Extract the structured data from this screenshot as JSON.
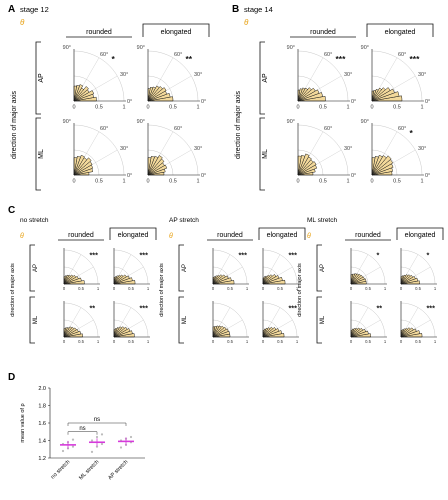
{
  "panels": {
    "A": {
      "letter": "A",
      "title": "stage 12",
      "col_headers": [
        "rounded",
        "elongated"
      ],
      "row_labels": [
        "AP",
        "ML"
      ],
      "y_axis_label": "direction of major axis",
      "theta_symbol": "θ",
      "angle_labels": [
        "90°",
        "60°",
        "30°",
        "0°"
      ],
      "radial_ticks": [
        "0",
        "0.5",
        "1"
      ],
      "significance": [
        [
          "*",
          "**"
        ],
        [
          "",
          ""
        ]
      ]
    },
    "B": {
      "letter": "B",
      "title": "stage 14",
      "col_headers": [
        "rounded",
        "elongated"
      ],
      "row_labels": [
        "AP",
        "ML"
      ],
      "y_axis_label": "direction of major axis",
      "theta_symbol": "θ",
      "angle_labels": [
        "90°",
        "60°",
        "30°",
        "0°"
      ],
      "radial_ticks": [
        "0",
        "0.5",
        "1"
      ],
      "significance": [
        [
          "***",
          "***"
        ],
        [
          "",
          "*"
        ]
      ]
    },
    "C": {
      "letter": "C",
      "theta_symbol": "θ",
      "col_headers": [
        "rounded",
        "elongated"
      ],
      "row_labels": [
        "AP",
        "ML"
      ],
      "y_axis_label": "direction of major axis",
      "radial_ticks": [
        "0",
        "0.5",
        "1"
      ],
      "groups": [
        {
          "title": "no stretch",
          "significance": [
            [
              "***",
              "***"
            ],
            [
              "**",
              "***"
            ]
          ]
        },
        {
          "title": "AP stretch",
          "significance": [
            [
              "***",
              "***"
            ],
            [
              "",
              "***"
            ]
          ]
        },
        {
          "title": "ML stretch",
          "significance": [
            [
              "*",
              "*"
            ],
            [
              "**",
              "***"
            ]
          ]
        }
      ]
    },
    "D": {
      "letter": "D",
      "ylabel": "mean value of ρ",
      "yticks": [
        "1.2",
        "1.4",
        "1.6",
        "1.8",
        "2.0"
      ],
      "ylim": [
        1.2,
        2.0
      ],
      "categories": [
        "no stretch",
        "ML stretch",
        "AP stretch"
      ],
      "ns_labels": [
        "ns",
        "ns"
      ]
    }
  },
  "chart_data": [
    {
      "type": "polar-histogram",
      "panel": "A",
      "bins_deg": [
        0,
        10,
        20,
        30,
        40,
        50,
        60,
        70,
        80,
        90
      ],
      "series": [
        {
          "row": "AP",
          "col": "rounded",
          "values": [
            0.45,
            0.4,
            0.42,
            0.35,
            0.38,
            0.3,
            0.35,
            0.32,
            0.3
          ]
        },
        {
          "row": "AP",
          "col": "elongated",
          "values": [
            0.5,
            0.45,
            0.4,
            0.42,
            0.38,
            0.35,
            0.3,
            0.28,
            0.25
          ]
        },
        {
          "row": "ML",
          "col": "rounded",
          "values": [
            0.3,
            0.38,
            0.4,
            0.42,
            0.45,
            0.4,
            0.42,
            0.38,
            0.35
          ]
        },
        {
          "row": "ML",
          "col": "elongated",
          "values": [
            0.32,
            0.35,
            0.4,
            0.38,
            0.42,
            0.45,
            0.4,
            0.38,
            0.35
          ]
        }
      ]
    },
    {
      "type": "polar-histogram",
      "panel": "B",
      "bins_deg": [
        0,
        10,
        20,
        30,
        40,
        50,
        60,
        70,
        80,
        90
      ],
      "series": [
        {
          "row": "AP",
          "col": "rounded",
          "values": [
            0.55,
            0.5,
            0.45,
            0.4,
            0.35,
            0.3,
            0.28,
            0.25,
            0.22
          ]
        },
        {
          "row": "AP",
          "col": "elongated",
          "values": [
            0.6,
            0.55,
            0.48,
            0.42,
            0.35,
            0.3,
            0.25,
            0.22,
            0.2
          ]
        },
        {
          "row": "ML",
          "col": "rounded",
          "values": [
            0.3,
            0.35,
            0.4,
            0.42,
            0.4,
            0.42,
            0.45,
            0.4,
            0.38
          ]
        },
        {
          "row": "ML",
          "col": "elongated",
          "values": [
            0.4,
            0.42,
            0.45,
            0.48,
            0.5,
            0.45,
            0.42,
            0.38,
            0.35
          ]
        }
      ]
    },
    {
      "type": "polar-histogram",
      "panel": "C",
      "bins_deg": [
        0,
        10,
        20,
        30,
        40,
        50,
        60,
        70,
        80,
        90
      ],
      "series": [
        {
          "group": "no stretch",
          "row": "AP",
          "col": "rounded",
          "values": [
            0.6,
            0.52,
            0.45,
            0.4,
            0.35,
            0.3,
            0.28,
            0.25,
            0.22
          ]
        },
        {
          "group": "no stretch",
          "row": "AP",
          "col": "elongated",
          "values": [
            0.62,
            0.55,
            0.48,
            0.42,
            0.35,
            0.3,
            0.26,
            0.22,
            0.2
          ]
        },
        {
          "group": "no stretch",
          "row": "ML",
          "col": "rounded",
          "values": [
            0.55,
            0.5,
            0.45,
            0.42,
            0.38,
            0.35,
            0.3,
            0.28,
            0.25
          ]
        },
        {
          "group": "no stretch",
          "row": "ML",
          "col": "elongated",
          "values": [
            0.6,
            0.55,
            0.5,
            0.45,
            0.4,
            0.35,
            0.3,
            0.26,
            0.22
          ]
        },
        {
          "group": "AP stretch",
          "row": "AP",
          "col": "rounded",
          "values": [
            0.62,
            0.55,
            0.48,
            0.42,
            0.36,
            0.3,
            0.26,
            0.22,
            0.2
          ]
        },
        {
          "group": "AP stretch",
          "row": "AP",
          "col": "elongated",
          "values": [
            0.65,
            0.58,
            0.5,
            0.44,
            0.36,
            0.3,
            0.25,
            0.22,
            0.18
          ]
        },
        {
          "group": "AP stretch",
          "row": "ML",
          "col": "rounded",
          "values": [
            0.5,
            0.5,
            0.48,
            0.45,
            0.42,
            0.38,
            0.35,
            0.32,
            0.3
          ]
        },
        {
          "group": "AP stretch",
          "row": "ML",
          "col": "elongated",
          "values": [
            0.62,
            0.56,
            0.5,
            0.44,
            0.38,
            0.32,
            0.28,
            0.24,
            0.2
          ]
        },
        {
          "group": "ML stretch",
          "row": "AP",
          "col": "rounded",
          "values": [
            0.45,
            0.45,
            0.42,
            0.4,
            0.38,
            0.35,
            0.33,
            0.3,
            0.28
          ]
        },
        {
          "group": "ML stretch",
          "row": "AP",
          "col": "elongated",
          "values": [
            0.55,
            0.5,
            0.45,
            0.4,
            0.36,
            0.32,
            0.28,
            0.25,
            0.22
          ]
        },
        {
          "group": "ML stretch",
          "row": "ML",
          "col": "rounded",
          "values": [
            0.58,
            0.52,
            0.46,
            0.4,
            0.35,
            0.3,
            0.27,
            0.24,
            0.2
          ]
        },
        {
          "group": "ML stretch",
          "row": "ML",
          "col": "elongated",
          "values": [
            0.62,
            0.56,
            0.48,
            0.42,
            0.36,
            0.3,
            0.26,
            0.22,
            0.2
          ]
        }
      ]
    },
    {
      "type": "scatter",
      "panel": "D",
      "categories": [
        "no stretch",
        "ML stretch",
        "AP stretch"
      ],
      "means": [
        1.35,
        1.38,
        1.39
      ],
      "points": [
        [
          1.28,
          1.31,
          1.33,
          1.36,
          1.38,
          1.41
        ],
        [
          1.27,
          1.33,
          1.36,
          1.4,
          1.44,
          1.47
        ],
        [
          1.32,
          1.35,
          1.38,
          1.4,
          1.42,
          1.44
        ]
      ],
      "ylim": [
        1.2,
        2.0
      ],
      "mean_color": "#d63adb",
      "point_color": "#bbbbbb"
    }
  ],
  "colors": {
    "fill": "#f3d99b",
    "stroke": "#1a1a1a",
    "theta": "#e8a317",
    "grid": "#c8c8c8"
  }
}
